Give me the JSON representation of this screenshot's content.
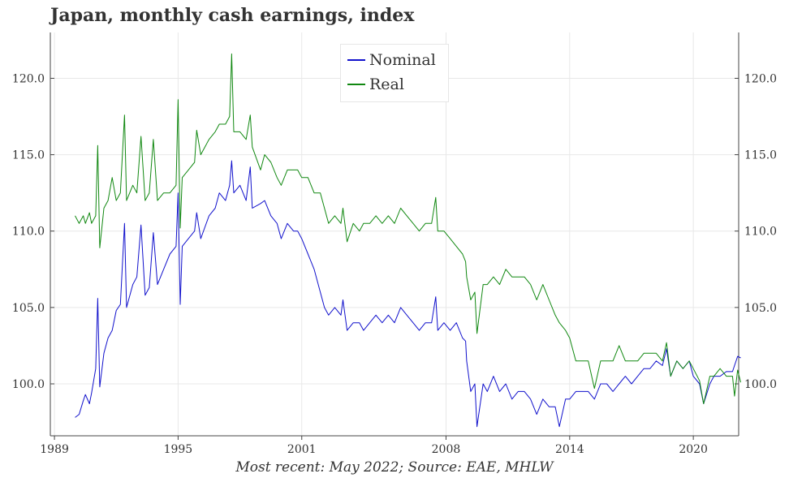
{
  "title": "Japan, monthly cash earnings, index",
  "source": "Most recent: May 2022; Source: EAE, MHLW",
  "chart_data": {
    "type": "line",
    "x_axis": {
      "ticks": [
        1989,
        1995,
        2001,
        2008,
        2014,
        2020
      ],
      "labels": [
        "1989",
        "1995",
        "2001",
        "2008",
        "2014",
        "2020"
      ],
      "range": [
        1988.8,
        2022.2
      ]
    },
    "y_axis": {
      "ticks": [
        100,
        105,
        110,
        115,
        120
      ],
      "labels": [
        "100.0",
        "105.0",
        "110.0",
        "115.0",
        "120.0"
      ],
      "range": [
        96.6,
        123.0
      ],
      "mirrored_right": true
    },
    "grid": true,
    "legend_position": "top-center",
    "series": [
      {
        "name": "Nominal",
        "color": "#1111cc",
        "points": [
          [
            1990.0,
            97.8
          ],
          [
            1990.2,
            98.0
          ],
          [
            1990.4,
            98.9
          ],
          [
            1990.5,
            99.3
          ],
          [
            1990.7,
            98.7
          ],
          [
            1990.8,
            99.4
          ],
          [
            1991.0,
            101.0
          ],
          [
            1991.1,
            105.6
          ],
          [
            1991.2,
            99.8
          ],
          [
            1991.4,
            102.0
          ],
          [
            1991.6,
            103.0
          ],
          [
            1991.8,
            103.5
          ],
          [
            1992.0,
            104.8
          ],
          [
            1992.2,
            105.2
          ],
          [
            1992.4,
            110.5
          ],
          [
            1992.5,
            105.0
          ],
          [
            1992.8,
            106.5
          ],
          [
            1993.0,
            107.0
          ],
          [
            1993.2,
            110.4
          ],
          [
            1993.4,
            105.8
          ],
          [
            1993.6,
            106.3
          ],
          [
            1993.8,
            109.9
          ],
          [
            1994.0,
            106.5
          ],
          [
            1994.3,
            107.5
          ],
          [
            1994.6,
            108.5
          ],
          [
            1994.9,
            109.0
          ],
          [
            1995.0,
            112.5
          ],
          [
            1995.1,
            105.2
          ],
          [
            1995.2,
            109.0
          ],
          [
            1995.5,
            109.5
          ],
          [
            1995.8,
            110.0
          ],
          [
            1995.9,
            111.2
          ],
          [
            1996.1,
            109.5
          ],
          [
            1996.5,
            111.0
          ],
          [
            1996.8,
            111.5
          ],
          [
            1997.0,
            112.5
          ],
          [
            1997.3,
            112.0
          ],
          [
            1997.5,
            113.0
          ],
          [
            1997.6,
            114.6
          ],
          [
            1997.7,
            112.5
          ],
          [
            1998.0,
            113.0
          ],
          [
            1998.3,
            112.0
          ],
          [
            1998.5,
            114.2
          ],
          [
            1998.6,
            111.5
          ],
          [
            1999.0,
            111.8
          ],
          [
            1999.2,
            112.0
          ],
          [
            1999.5,
            111.0
          ],
          [
            1999.8,
            110.5
          ],
          [
            2000.0,
            109.5
          ],
          [
            2000.3,
            110.5
          ],
          [
            2000.6,
            110.0
          ],
          [
            2000.8,
            110.0
          ],
          [
            2001.0,
            109.5
          ],
          [
            2001.3,
            108.5
          ],
          [
            2001.6,
            107.5
          ],
          [
            2001.9,
            106.0
          ],
          [
            2002.1,
            105.0
          ],
          [
            2002.3,
            104.5
          ],
          [
            2002.6,
            105.0
          ],
          [
            2002.9,
            104.5
          ],
          [
            2003.0,
            105.5
          ],
          [
            2003.2,
            103.5
          ],
          [
            2003.5,
            104.0
          ],
          [
            2003.8,
            104.0
          ],
          [
            2004.0,
            103.5
          ],
          [
            2004.3,
            104.0
          ],
          [
            2004.6,
            104.5
          ],
          [
            2004.9,
            104.0
          ],
          [
            2005.2,
            104.5
          ],
          [
            2005.5,
            104.0
          ],
          [
            2005.8,
            105.0
          ],
          [
            2006.1,
            104.5
          ],
          [
            2006.4,
            104.0
          ],
          [
            2006.7,
            103.5
          ],
          [
            2007.0,
            104.0
          ],
          [
            2007.3,
            104.0
          ],
          [
            2007.5,
            105.7
          ],
          [
            2007.6,
            103.5
          ],
          [
            2007.9,
            104.0
          ],
          [
            2008.2,
            103.5
          ],
          [
            2008.5,
            104.0
          ],
          [
            2008.8,
            103.0
          ],
          [
            2008.95,
            102.8
          ],
          [
            2009.0,
            101.5
          ],
          [
            2009.2,
            99.5
          ],
          [
            2009.4,
            100.0
          ],
          [
            2009.5,
            97.2
          ],
          [
            2009.8,
            100.0
          ],
          [
            2010.0,
            99.5
          ],
          [
            2010.3,
            100.5
          ],
          [
            2010.6,
            99.5
          ],
          [
            2010.9,
            100.0
          ],
          [
            2011.2,
            99.0
          ],
          [
            2011.5,
            99.5
          ],
          [
            2011.8,
            99.5
          ],
          [
            2012.1,
            99.0
          ],
          [
            2012.4,
            98.0
          ],
          [
            2012.7,
            99.0
          ],
          [
            2013.0,
            98.5
          ],
          [
            2013.3,
            98.5
          ],
          [
            2013.5,
            97.2
          ],
          [
            2013.8,
            99.0
          ],
          [
            2014.0,
            99.0
          ],
          [
            2014.3,
            99.5
          ],
          [
            2014.6,
            99.5
          ],
          [
            2014.9,
            99.5
          ],
          [
            2015.2,
            99.0
          ],
          [
            2015.5,
            100.0
          ],
          [
            2015.8,
            100.0
          ],
          [
            2016.1,
            99.5
          ],
          [
            2016.4,
            100.0
          ],
          [
            2016.7,
            100.5
          ],
          [
            2017.0,
            100.0
          ],
          [
            2017.3,
            100.5
          ],
          [
            2017.6,
            101.0
          ],
          [
            2017.9,
            101.0
          ],
          [
            2018.2,
            101.5
          ],
          [
            2018.5,
            101.2
          ],
          [
            2018.7,
            102.3
          ],
          [
            2018.9,
            100.5
          ],
          [
            2019.2,
            101.5
          ],
          [
            2019.5,
            101.0
          ],
          [
            2019.8,
            101.5
          ],
          [
            2020.0,
            100.5
          ],
          [
            2020.3,
            100.0
          ],
          [
            2020.5,
            98.7
          ],
          [
            2020.8,
            100.0
          ],
          [
            2021.0,
            100.5
          ],
          [
            2021.3,
            100.5
          ],
          [
            2021.6,
            100.8
          ],
          [
            2021.9,
            100.8
          ],
          [
            2022.0,
            101.2
          ],
          [
            2022.15,
            101.8
          ],
          [
            2022.3,
            101.7
          ]
        ]
      },
      {
        "name": "Real",
        "color": "#118811",
        "points": [
          [
            1990.0,
            111.0
          ],
          [
            1990.2,
            110.5
          ],
          [
            1990.4,
            111.0
          ],
          [
            1990.5,
            110.5
          ],
          [
            1990.7,
            111.2
          ],
          [
            1990.8,
            110.5
          ],
          [
            1991.0,
            111.0
          ],
          [
            1991.1,
            115.6
          ],
          [
            1991.2,
            108.9
          ],
          [
            1991.4,
            111.5
          ],
          [
            1991.6,
            112.0
          ],
          [
            1991.8,
            113.5
          ],
          [
            1992.0,
            112.0
          ],
          [
            1992.2,
            112.5
          ],
          [
            1992.4,
            117.6
          ],
          [
            1992.5,
            112.0
          ],
          [
            1992.8,
            113.0
          ],
          [
            1993.0,
            112.5
          ],
          [
            1993.2,
            116.2
          ],
          [
            1993.4,
            112.0
          ],
          [
            1993.6,
            112.5
          ],
          [
            1993.8,
            116.0
          ],
          [
            1994.0,
            112.0
          ],
          [
            1994.3,
            112.5
          ],
          [
            1994.6,
            112.5
          ],
          [
            1994.9,
            113.0
          ],
          [
            1995.0,
            118.6
          ],
          [
            1995.1,
            110.2
          ],
          [
            1995.2,
            113.5
          ],
          [
            1995.5,
            114.0
          ],
          [
            1995.8,
            114.5
          ],
          [
            1995.9,
            116.6
          ],
          [
            1996.1,
            115.0
          ],
          [
            1996.5,
            116.0
          ],
          [
            1996.8,
            116.5
          ],
          [
            1997.0,
            117.0
          ],
          [
            1997.3,
            117.0
          ],
          [
            1997.5,
            117.5
          ],
          [
            1997.6,
            121.6
          ],
          [
            1997.7,
            116.5
          ],
          [
            1998.0,
            116.5
          ],
          [
            1998.3,
            116.0
          ],
          [
            1998.5,
            117.6
          ],
          [
            1998.6,
            115.5
          ],
          [
            1999.0,
            114.0
          ],
          [
            1999.2,
            115.0
          ],
          [
            1999.5,
            114.5
          ],
          [
            1999.8,
            113.5
          ],
          [
            2000.0,
            113.0
          ],
          [
            2000.3,
            114.0
          ],
          [
            2000.6,
            114.0
          ],
          [
            2000.8,
            114.0
          ],
          [
            2001.0,
            113.5
          ],
          [
            2001.3,
            113.5
          ],
          [
            2001.6,
            112.5
          ],
          [
            2001.9,
            112.5
          ],
          [
            2002.1,
            111.5
          ],
          [
            2002.3,
            110.5
          ],
          [
            2002.6,
            111.0
          ],
          [
            2002.9,
            110.5
          ],
          [
            2003.0,
            111.5
          ],
          [
            2003.2,
            109.3
          ],
          [
            2003.5,
            110.5
          ],
          [
            2003.8,
            110.0
          ],
          [
            2004.0,
            110.5
          ],
          [
            2004.3,
            110.5
          ],
          [
            2004.6,
            111.0
          ],
          [
            2004.9,
            110.5
          ],
          [
            2005.2,
            111.0
          ],
          [
            2005.5,
            110.5
          ],
          [
            2005.8,
            111.5
          ],
          [
            2006.1,
            111.0
          ],
          [
            2006.4,
            110.5
          ],
          [
            2006.7,
            110.0
          ],
          [
            2007.0,
            110.5
          ],
          [
            2007.3,
            110.5
          ],
          [
            2007.5,
            112.2
          ],
          [
            2007.6,
            110.0
          ],
          [
            2007.9,
            110.0
          ],
          [
            2008.2,
            109.5
          ],
          [
            2008.5,
            109.0
          ],
          [
            2008.8,
            108.5
          ],
          [
            2008.95,
            108.0
          ],
          [
            2009.0,
            107.0
          ],
          [
            2009.2,
            105.5
          ],
          [
            2009.4,
            106.0
          ],
          [
            2009.5,
            103.3
          ],
          [
            2009.8,
            106.5
          ],
          [
            2010.0,
            106.5
          ],
          [
            2010.3,
            107.0
          ],
          [
            2010.6,
            106.5
          ],
          [
            2010.9,
            107.5
          ],
          [
            2011.2,
            107.0
          ],
          [
            2011.5,
            107.0
          ],
          [
            2011.8,
            107.0
          ],
          [
            2012.1,
            106.5
          ],
          [
            2012.4,
            105.5
          ],
          [
            2012.7,
            106.5
          ],
          [
            2013.0,
            105.5
          ],
          [
            2013.3,
            104.5
          ],
          [
            2013.5,
            104.0
          ],
          [
            2013.8,
            103.5
          ],
          [
            2014.0,
            103.0
          ],
          [
            2014.3,
            101.5
          ],
          [
            2014.6,
            101.5
          ],
          [
            2014.9,
            101.5
          ],
          [
            2015.2,
            99.7
          ],
          [
            2015.5,
            101.5
          ],
          [
            2015.8,
            101.5
          ],
          [
            2016.1,
            101.5
          ],
          [
            2016.4,
            102.5
          ],
          [
            2016.7,
            101.5
          ],
          [
            2017.0,
            101.5
          ],
          [
            2017.3,
            101.5
          ],
          [
            2017.6,
            102.0
          ],
          [
            2017.9,
            102.0
          ],
          [
            2018.2,
            102.0
          ],
          [
            2018.5,
            101.5
          ],
          [
            2018.7,
            102.7
          ],
          [
            2018.9,
            100.5
          ],
          [
            2019.2,
            101.5
          ],
          [
            2019.5,
            101.0
          ],
          [
            2019.8,
            101.5
          ],
          [
            2020.0,
            101.0
          ],
          [
            2020.3,
            100.2
          ],
          [
            2020.5,
            98.7
          ],
          [
            2020.8,
            100.5
          ],
          [
            2021.0,
            100.5
          ],
          [
            2021.3,
            101.0
          ],
          [
            2021.6,
            100.5
          ],
          [
            2021.9,
            100.5
          ],
          [
            2022.0,
            99.2
          ],
          [
            2022.15,
            100.9
          ],
          [
            2022.3,
            100.1
          ]
        ]
      }
    ]
  }
}
